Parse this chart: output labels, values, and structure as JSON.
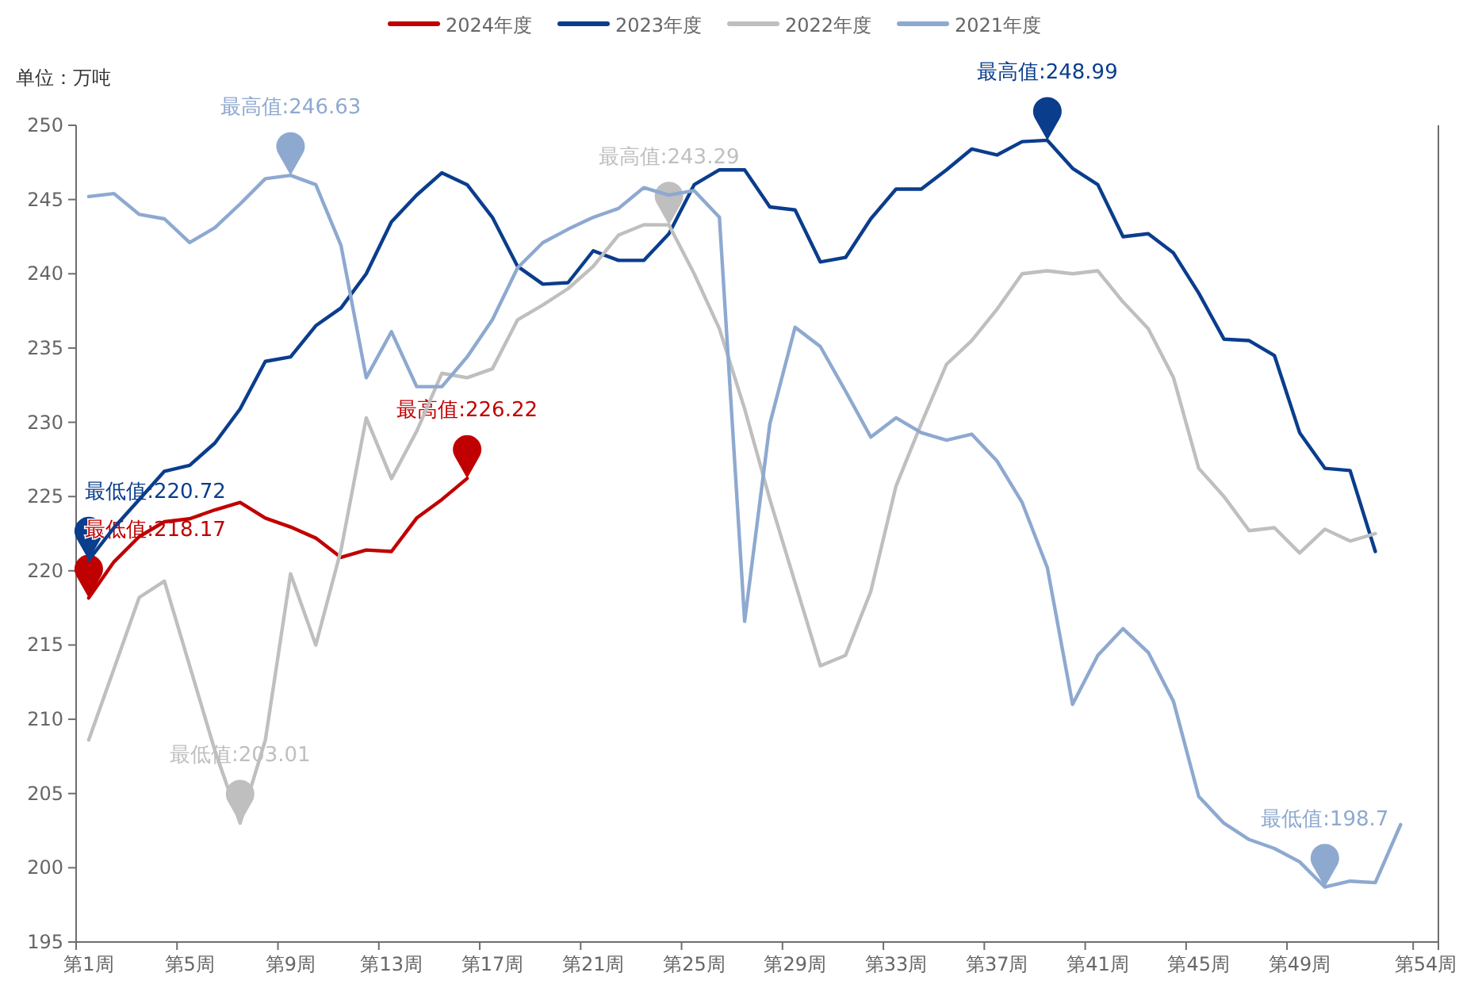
{
  "chart_data": {
    "type": "line",
    "ylabel": "单位：万吨",
    "categories": [
      "第1周",
      null,
      null,
      null,
      "第5周",
      null,
      null,
      null,
      "第9周",
      null,
      null,
      null,
      "第13周",
      null,
      null,
      null,
      "第17周",
      null,
      null,
      null,
      "第21周",
      null,
      null,
      null,
      "第25周",
      null,
      null,
      null,
      "第29周",
      null,
      null,
      null,
      "第33周",
      null,
      null,
      null,
      "第37周",
      null,
      null,
      null,
      "第41周",
      null,
      null,
      null,
      "第45周",
      null,
      null,
      null,
      "第49周",
      null,
      null,
      null,
      null,
      "第54周"
    ],
    "ylim": [
      195,
      250
    ],
    "yticks": [
      195,
      200,
      205,
      210,
      215,
      220,
      225,
      230,
      235,
      240,
      245,
      250
    ],
    "legend": "top",
    "series": [
      {
        "name": "2024年度",
        "color": "#c00000",
        "values": [
          218.17,
          220.6,
          222.3,
          223.3,
          223.5,
          224.1,
          224.6,
          223.55,
          222.95,
          222.2,
          220.9,
          221.4,
          221.3,
          223.55,
          224.8,
          226.22,
          null,
          null,
          null,
          null,
          null,
          null,
          null,
          null,
          null,
          null,
          null,
          null,
          null,
          null,
          null,
          null,
          null,
          null,
          null,
          null,
          null,
          null,
          null,
          null,
          null,
          null,
          null,
          null,
          null,
          null,
          null,
          null,
          null,
          null,
          null,
          null,
          null,
          null
        ]
      },
      {
        "name": "2023年度",
        "color": "#0a3d8c",
        "values": [
          220.72,
          222.9,
          224.8,
          226.7,
          227.1,
          228.6,
          230.9,
          234.1,
          234.4,
          236.5,
          237.7,
          240.0,
          243.5,
          245.3,
          246.8,
          246.0,
          243.8,
          240.5,
          239.3,
          239.4,
          241.55,
          240.9,
          240.9,
          242.7,
          246.0,
          247.0,
          247.0,
          244.5,
          244.3,
          240.8,
          241.1,
          243.7,
          245.7,
          245.7,
          247.0,
          248.4,
          248.0,
          248.9,
          248.99,
          247.1,
          246.0,
          242.5,
          242.7,
          241.4,
          238.7,
          235.6,
          235.5,
          234.5,
          229.3,
          226.9,
          226.75,
          221.3,
          null,
          null
        ]
      },
      {
        "name": "2022年度",
        "color": "#bfbfbf",
        "values": [
          208.6,
          213.4,
          218.2,
          219.3,
          213.6,
          207.9,
          203.01,
          208.6,
          219.8,
          215.0,
          221.4,
          230.3,
          226.2,
          229.4,
          233.3,
          233.0,
          233.6,
          236.9,
          237.9,
          239.0,
          240.5,
          242.6,
          243.3,
          243.29,
          240.0,
          236.3,
          230.9,
          224.8,
          219.2,
          213.6,
          214.3,
          218.6,
          225.7,
          229.9,
          233.9,
          235.5,
          237.6,
          240.0,
          240.2,
          240.0,
          240.2,
          238.1,
          236.3,
          233.0,
          226.9,
          225.0,
          222.7,
          222.9,
          221.2,
          222.8,
          222.0,
          222.5,
          null,
          null
        ]
      },
      {
        "name": "2021年度",
        "color": "#8ea9d0",
        "values": [
          245.2,
          245.4,
          244.0,
          243.7,
          242.1,
          243.1,
          244.7,
          246.4,
          246.63,
          246.0,
          241.9,
          233.0,
          236.1,
          232.4,
          232.4,
          234.4,
          236.9,
          240.4,
          242.1,
          243.0,
          243.8,
          244.4,
          245.8,
          245.3,
          245.6,
          243.8,
          216.6,
          229.9,
          236.4,
          235.1,
          232.1,
          229.0,
          230.3,
          229.3,
          228.8,
          229.2,
          227.4,
          224.6,
          220.2,
          211.0,
          214.3,
          216.1,
          214.5,
          211.2,
          204.8,
          203.0,
          201.9,
          201.3,
          200.4,
          198.7,
          199.1,
          199.0,
          202.9,
          null
        ]
      }
    ],
    "annotations": [
      {
        "text": "最高值:226.22",
        "y": 226.22
      },
      {
        "text": "最低值:218.17",
        "x": "第1周",
        "y": 218.17
      },
      {
        "text": "最高值:248.99",
        "y": 248.99
      },
      {
        "text": "最低值:220.72",
        "x": "第1周",
        "y": 220.72
      },
      {
        "text": "最高值:243.29",
        "y": 243.29
      },
      {
        "text": "最低值:203.01",
        "y": 203.01
      },
      {
        "text": "最高值:246.63",
        "y": 246.63
      },
      {
        "text": "最低值:198.7",
        "y": 198.7
      }
    ]
  }
}
